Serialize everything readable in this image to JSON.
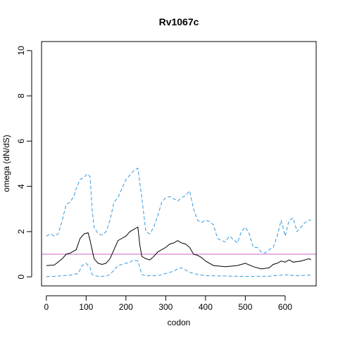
{
  "chart_data": {
    "type": "line",
    "title": "Rv1067c",
    "xlabel": "codon",
    "ylabel": "omega (dN/dS)",
    "xlim": [
      -12,
      678
    ],
    "ylim": [
      -0.4,
      10.4
    ],
    "xticks": [
      0,
      100,
      200,
      300,
      400,
      500,
      600
    ],
    "yticks": [
      0,
      2,
      4,
      6,
      8,
      10
    ],
    "grid": false,
    "reference_line": {
      "y": 1,
      "color": "#cc66cc"
    },
    "series": [
      {
        "role": "estimate",
        "color": "#000000",
        "dash": "solid",
        "x": [
          0,
          20,
          40,
          50,
          60,
          75,
          85,
          95,
          105,
          110,
          120,
          130,
          140,
          150,
          160,
          170,
          180,
          190,
          200,
          210,
          220,
          230,
          235,
          240,
          250,
          260,
          270,
          280,
          290,
          300,
          310,
          320,
          330,
          340,
          350,
          360,
          370,
          380,
          390,
          400,
          420,
          450,
          480,
          490,
          500,
          520,
          540,
          560,
          570,
          580,
          590,
          600,
          610,
          620,
          640,
          660,
          665
        ],
        "y": [
          0.5,
          0.52,
          0.8,
          1.0,
          1.05,
          1.2,
          1.7,
          1.9,
          1.95,
          1.6,
          0.8,
          0.6,
          0.55,
          0.6,
          0.8,
          1.2,
          1.6,
          1.7,
          1.8,
          2.0,
          2.1,
          2.2,
          1.4,
          0.9,
          0.8,
          0.75,
          0.9,
          1.1,
          1.2,
          1.3,
          1.45,
          1.5,
          1.6,
          1.5,
          1.45,
          1.3,
          1.0,
          0.95,
          0.85,
          0.7,
          0.5,
          0.45,
          0.5,
          0.55,
          0.6,
          0.45,
          0.35,
          0.4,
          0.55,
          0.6,
          0.7,
          0.65,
          0.75,
          0.65,
          0.7,
          0.8,
          0.75
        ]
      },
      {
        "role": "upper bound",
        "color": "#3399dd",
        "dash": "dashed",
        "x": [
          0,
          10,
          20,
          30,
          40,
          50,
          60,
          70,
          75,
          85,
          95,
          100,
          105,
          110,
          115,
          120,
          130,
          140,
          150,
          160,
          170,
          180,
          190,
          200,
          210,
          220,
          230,
          240,
          250,
          260,
          270,
          280,
          290,
          300,
          310,
          320,
          330,
          340,
          350,
          360,
          370,
          380,
          390,
          400,
          410,
          420,
          430,
          440,
          450,
          460,
          470,
          480,
          490,
          500,
          510,
          520,
          530,
          540,
          550,
          560,
          570,
          580,
          590,
          600,
          610,
          620,
          630,
          640,
          650,
          660,
          665
        ],
        "y": [
          1.8,
          1.9,
          1.8,
          1.9,
          2.5,
          3.2,
          3.3,
          3.6,
          3.9,
          4.3,
          4.4,
          4.5,
          4.55,
          4.4,
          3.0,
          2.2,
          1.9,
          1.85,
          2.0,
          2.5,
          3.3,
          3.5,
          3.9,
          4.3,
          4.5,
          4.7,
          4.8,
          3.5,
          2.0,
          1.9,
          2.2,
          2.7,
          3.3,
          3.5,
          3.55,
          3.45,
          3.35,
          3.5,
          3.6,
          3.8,
          3.0,
          2.5,
          2.4,
          2.5,
          2.45,
          2.3,
          1.7,
          1.6,
          1.55,
          1.8,
          1.65,
          1.5,
          2.0,
          2.2,
          1.9,
          1.3,
          1.3,
          1.1,
          1.05,
          1.2,
          1.3,
          1.8,
          2.5,
          1.8,
          2.5,
          2.6,
          2.0,
          2.2,
          2.4,
          2.5,
          2.5
        ]
      },
      {
        "role": "lower bound",
        "color": "#3399dd",
        "dash": "dashed",
        "x": [
          0,
          20,
          40,
          60,
          80,
          90,
          100,
          110,
          115,
          130,
          150,
          160,
          170,
          180,
          190,
          200,
          210,
          220,
          230,
          240,
          250,
          280,
          300,
          320,
          330,
          340,
          360,
          380,
          400,
          500,
          520,
          560,
          580,
          600,
          610,
          620,
          640,
          660,
          665
        ],
        "y": [
          0.01,
          0.02,
          0.05,
          0.08,
          0.15,
          0.5,
          0.6,
          0.4,
          0.1,
          0.02,
          0.03,
          0.1,
          0.3,
          0.5,
          0.55,
          0.6,
          0.65,
          0.75,
          0.7,
          0.1,
          0.05,
          0.05,
          0.15,
          0.25,
          0.35,
          0.4,
          0.2,
          0.1,
          0.05,
          0.02,
          0.02,
          0.03,
          0.06,
          0.08,
          0.1,
          0.05,
          0.05,
          0.08,
          0.07
        ]
      }
    ]
  }
}
